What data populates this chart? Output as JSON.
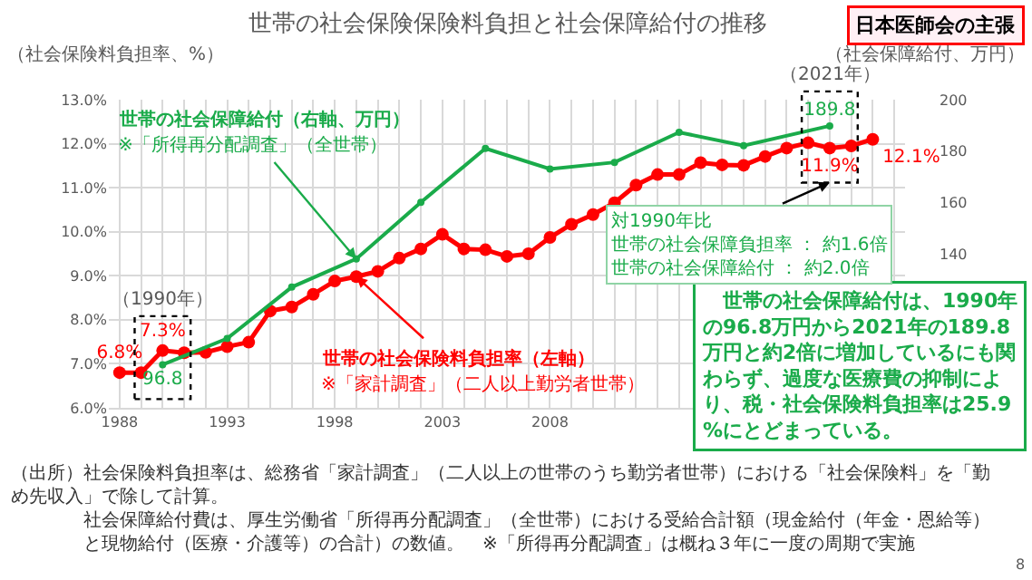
{
  "chart_data": {
    "type": "line",
    "title": "世帯の社会保険保険料負担と社会保障給付の推移",
    "ylabel": "（社会保険料負担率、%）",
    "y2label": "（社会保障給付、万円）",
    "xlim": [
      1987.5,
      2024.5
    ],
    "xticks": [
      1988,
      {
        "value": 1989,
        "label": null
      },
      {
        "value": 1990,
        "label": null
      },
      {
        "value": 1991,
        "label": null
      },
      {
        "value": 1992,
        "label": null
      },
      1993,
      {
        "value": 1994,
        "label": null
      },
      {
        "value": 1995,
        "label": null
      },
      {
        "value": 1996,
        "label": null
      },
      {
        "value": 1997,
        "label": null
      },
      1998,
      {
        "value": 1999,
        "label": null
      },
      {
        "value": 2000,
        "label": null
      },
      {
        "value": 2001,
        "label": null
      },
      {
        "value": 2002,
        "label": null
      },
      2003,
      {
        "value": 2004,
        "label": null
      },
      {
        "value": 2005,
        "label": null
      },
      {
        "value": 2006,
        "label": null
      },
      {
        "value": 2007,
        "label": null
      },
      2008,
      {
        "value": 2009,
        "label": null
      },
      {
        "value": 2010,
        "label": null
      },
      {
        "value": 2011,
        "label": null
      },
      {
        "value": 2012,
        "label": null
      },
      {
        "value": 2013,
        "label": null
      },
      {
        "value": 2014,
        "label": null
      },
      {
        "value": 2015,
        "label": null
      },
      {
        "value": 2016,
        "label": null
      },
      {
        "value": 2017,
        "label": null
      },
      {
        "value": 2018,
        "label": null
      },
      {
        "value": 2019,
        "label": null
      },
      {
        "value": 2020,
        "label": null
      },
      {
        "value": 2021,
        "label": null
      },
      {
        "value": 2022,
        "label": null
      },
      {
        "value": 2023,
        "label": null
      },
      {
        "value": 2024,
        "label": null
      }
    ],
    "ylim": [
      6,
      13
    ],
    "yticks": [
      {
        "value": 6,
        "label": "6.0%"
      },
      {
        "value": 7,
        "label": "7.0%"
      },
      {
        "value": 8,
        "label": "8.0%"
      },
      {
        "value": 9,
        "label": "9.0%"
      },
      {
        "value": 10,
        "label": "10.0%"
      },
      {
        "value": 11,
        "label": "11.0%"
      },
      {
        "value": 12,
        "label": "12.0%"
      },
      {
        "value": 13,
        "label": "13.0%"
      }
    ],
    "y2lim": [
      80,
      200
    ],
    "y2ticks": [
      140,
      160,
      180,
      200
    ],
    "grid": true,
    "marker": "circle",
    "line_style": "solid",
    "series": [
      {
        "name": "世帯の社会保険料負担率（左軸）",
        "color": "#ff0000",
        "x": [
          1988,
          1989,
          1990,
          1991,
          1992,
          1993,
          1994,
          1995,
          1996,
          1997,
          1998,
          1999,
          2000,
          2001,
          2002,
          2003,
          2004,
          2005,
          2006,
          2007,
          2008,
          2009,
          2010,
          2011,
          2012,
          2013,
          2014,
          2015,
          2016,
          2017,
          2018,
          2019,
          2020,
          2021,
          2022,
          2023
        ],
        "values": [
          6.8,
          6.8,
          7.3,
          7.25,
          7.26,
          7.39,
          7.49,
          8.2,
          8.29,
          8.58,
          8.88,
          8.98,
          9.1,
          9.4,
          9.61,
          9.94,
          9.61,
          9.59,
          9.44,
          9.5,
          9.87,
          10.17,
          10.39,
          10.66,
          11.06,
          11.3,
          11.3,
          11.57,
          11.52,
          11.51,
          11.71,
          11.9,
          12.02,
          11.9,
          11.95,
          12.1
        ],
        "value_labels": [
          "6.8%",
          null,
          "7.3%",
          null,
          null,
          null,
          null,
          null,
          null,
          null,
          null,
          null,
          null,
          null,
          null,
          null,
          null,
          null,
          null,
          null,
          null,
          null,
          null,
          null,
          null,
          null,
          null,
          null,
          null,
          null,
          null,
          null,
          null,
          "11.9%",
          null,
          "12.1%"
        ]
      },
      {
        "name": "世帯の社会保障給付（右軸、万円）",
        "color": "#1aab4a",
        "axis": "y2",
        "x": [
          1990,
          1993,
          1996,
          1999,
          2002,
          2005,
          2008,
          2011,
          2014,
          2017,
          2021
        ],
        "values": [
          96.8,
          107,
          127,
          138,
          160,
          181,
          173,
          175.6,
          187.3,
          182.1,
          189.8
        ],
        "value_labels": [
          "96.8",
          null,
          null,
          null,
          null,
          null,
          null,
          null,
          null,
          null,
          "189.8"
        ]
      }
    ],
    "annotations": [
      "日本医師会の主張",
      "対1990年比",
      "世帯の社会保障負担率 ： 約1.6倍",
      "世帯の社会保障給付 ： 約2.0倍",
      "　世帯の社会保障給付は、1990年の96.8万円から2021年の189.8万円と約2倍に増加しているにも関わらず、過度な医療費の抑制により、税・社会保険料負担率は25.9%にとどまっている。",
      {
        "text": "※「所得再分配調査」（全世帯）",
        "x": 1999,
        "y": 9.38
      },
      "※「家計調査」（二人以上勤労者世帯）",
      "（1990年）",
      "（2021年）",
      "（出所）社会保険料負担率は、総務省「家計調査」（二人以上の世帯のうち勤労者世帯）における「社会保険料」を「勤め先収入」で除して計算。",
      "社会保障給付費は、厚生労働省「所得再分配調査」（全世帯）における受給合計額（現金給付（年金・恩給等）と現物給付（医療・介護等）の合計）の数値。　※「所得再分配調査」は概ね３年に一度の周期で実施",
      "8"
    ]
  }
}
